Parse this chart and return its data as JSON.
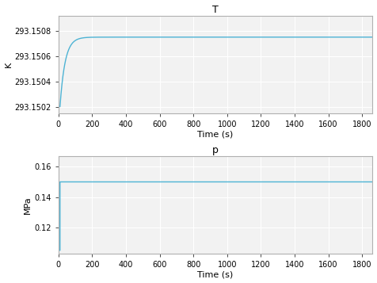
{
  "fig_width": 4.76,
  "fig_height": 3.57,
  "dpi": 100,
  "subplot1": {
    "title": "T",
    "ylabel": "K",
    "xlabel": "Time (s)",
    "xlim": [
      0,
      1860
    ],
    "ylim": [
      293.15015,
      293.15092
    ],
    "yticks": [
      293.1502,
      293.1504,
      293.1506,
      293.1508
    ],
    "xticks": [
      0,
      200,
      400,
      600,
      800,
      1000,
      1200,
      1400,
      1600,
      1800
    ],
    "T_init": 293.1502,
    "T_final": 293.15075,
    "T_tau": 30,
    "T_step_time": 10,
    "line_color": "#4db3d4",
    "line_width": 1.0
  },
  "subplot2": {
    "title": "p",
    "ylabel": "MPa",
    "xlabel": "Time (s)",
    "xlim": [
      0,
      1860
    ],
    "ylim": [
      0.103,
      0.167
    ],
    "yticks": [
      0.12,
      0.14,
      0.16
    ],
    "xticks": [
      0,
      200,
      400,
      600,
      800,
      1000,
      1200,
      1400,
      1600,
      1800
    ],
    "p_init": 0.105,
    "p_final": 0.15,
    "p_step_time": 10,
    "line_color": "#4db3d4",
    "line_width": 1.0
  },
  "background_color": "#ffffff",
  "axes_facecolor": "#f2f2f2",
  "grid_color": "#ffffff",
  "grid_linewidth": 0.8,
  "tick_labelsize": 7,
  "label_fontsize": 8,
  "title_fontsize": 9,
  "spine_color": "#b0b0b0",
  "spine_linewidth": 0.8
}
